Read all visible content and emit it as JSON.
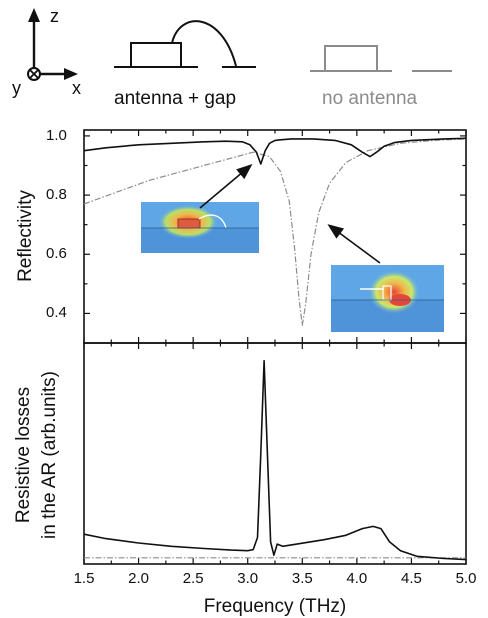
{
  "header": {
    "axes": {
      "z": "z",
      "y": "y",
      "x": "x"
    },
    "schematic_with": "antenna + gap",
    "schematic_without": "no antenna"
  },
  "colors": {
    "with_antenna": "#111111",
    "no_antenna": "#8c8c8c",
    "field_background": "#5fa6e6"
  },
  "chart_data": [
    {
      "type": "line",
      "panel": "top",
      "ylabel": "Reflectivity",
      "xlim": [
        1.5,
        5.0
      ],
      "ylim": [
        0.3,
        1.02
      ],
      "yticks": [
        "0.4",
        "0.6",
        "0.8",
        "1.0"
      ],
      "grid": false,
      "series": [
        {
          "name": "antenna + gap",
          "x": [
            1.5,
            1.7,
            2.0,
            2.3,
            2.6,
            2.8,
            2.95,
            3.02,
            3.08,
            3.12,
            3.16,
            3.2,
            3.25,
            3.3,
            3.4,
            3.6,
            3.8,
            3.95,
            4.05,
            4.12,
            4.18,
            4.25,
            4.35,
            4.5,
            4.8,
            5.0
          ],
          "y": [
            0.95,
            0.96,
            0.97,
            0.975,
            0.98,
            0.982,
            0.98,
            0.97,
            0.945,
            0.905,
            0.95,
            0.975,
            0.985,
            0.987,
            0.99,
            0.99,
            0.985,
            0.97,
            0.945,
            0.93,
            0.945,
            0.965,
            0.978,
            0.985,
            0.99,
            0.992
          ]
        },
        {
          "name": "no antenna",
          "x": [
            1.5,
            1.8,
            2.1,
            2.4,
            2.7,
            2.9,
            3.05,
            3.2,
            3.3,
            3.38,
            3.43,
            3.47,
            3.5,
            3.53,
            3.58,
            3.65,
            3.75,
            3.9,
            4.1,
            4.4,
            4.7,
            5.0
          ],
          "y": [
            0.77,
            0.81,
            0.85,
            0.88,
            0.91,
            0.93,
            0.945,
            0.93,
            0.88,
            0.78,
            0.62,
            0.45,
            0.36,
            0.43,
            0.6,
            0.74,
            0.84,
            0.91,
            0.95,
            0.975,
            0.985,
            0.99
          ]
        }
      ]
    },
    {
      "type": "line",
      "panel": "bottom",
      "xlabel": "Frequency (THz)",
      "ylabel": "Resistive losses in the AR (arb.units)",
      "ylabel_lines": [
        "Resistive losses",
        "in the AR (arb.units)"
      ],
      "xlim": [
        1.5,
        5.0
      ],
      "ylim": [
        0,
        1
      ],
      "xticks": [
        "1.5",
        "2.0",
        "2.5",
        "3.0",
        "3.5",
        "4.0",
        "4.5",
        "5.0"
      ],
      "grid": false,
      "series": [
        {
          "name": "antenna + gap",
          "x": [
            1.5,
            1.7,
            2.0,
            2.3,
            2.6,
            2.85,
            3.0,
            3.05,
            3.09,
            3.12,
            3.15,
            3.18,
            3.21,
            3.24,
            3.27,
            3.32,
            3.45,
            3.7,
            3.9,
            4.05,
            4.15,
            4.22,
            4.3,
            4.4,
            4.55,
            4.8,
            5.0
          ],
          "y": [
            0.135,
            0.115,
            0.095,
            0.08,
            0.07,
            0.063,
            0.06,
            0.065,
            0.12,
            0.5,
            0.92,
            0.5,
            0.1,
            0.04,
            0.09,
            0.08,
            0.09,
            0.11,
            0.13,
            0.16,
            0.17,
            0.16,
            0.1,
            0.06,
            0.035,
            0.025,
            0.02
          ]
        },
        {
          "name": "no antenna",
          "x": [
            1.5,
            5.0
          ],
          "y": [
            0.028,
            0.028
          ]
        }
      ]
    }
  ]
}
